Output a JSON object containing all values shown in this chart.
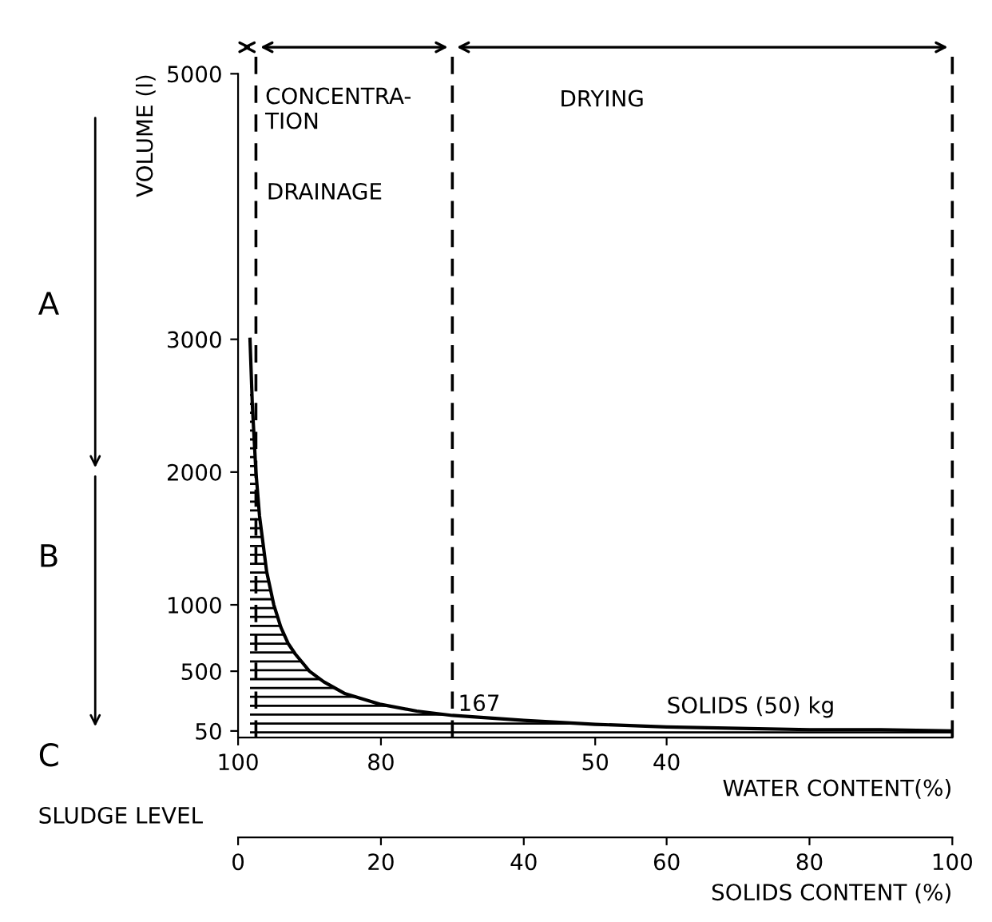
{
  "chart_data": {
    "type": "area",
    "x": [
      1.67,
      2,
      2.5,
      3,
      4,
      5,
      6,
      7,
      8,
      10,
      12,
      15,
      20,
      25,
      30,
      40,
      50,
      60,
      70,
      80,
      90,
      100
    ],
    "series": [
      {
        "color": "#000000",
        "values": [
          3000,
          2500,
          2000,
          1670,
          1250,
          1000,
          830,
          710,
          630,
          500,
          420,
          330,
          250,
          200,
          167,
          130,
          100,
          80,
          70,
          60,
          60,
          50
        ]
      }
    ],
    "xlabel": "SOLIDS CONTENT (%)",
    "x2label": "WATER CONTENT(%)",
    "ylabel": "VOLUME (l)",
    "xlim": [
      0,
      100
    ],
    "xticks": [
      0,
      20,
      40,
      60,
      80,
      100
    ],
    "x2lim": [
      100,
      0
    ],
    "x2ticks": [
      100,
      80,
      50,
      40
    ],
    "ylim": [
      0,
      5000
    ],
    "yticks": [
      50,
      500,
      1000,
      2000,
      3000,
      5000
    ],
    "ref_lines": [
      {
        "axis": "x",
        "value": 2.5,
        "line_style": "dashed",
        "color": "#000000"
      },
      {
        "axis": "x",
        "value": 30,
        "line_style": "dashed",
        "color": "#000000"
      },
      {
        "axis": "x",
        "value": 100,
        "line_style": "dashed",
        "color": "#000000"
      }
    ],
    "annotations": [
      {
        "text": "CONCENTRA-\nTION",
        "x": 3,
        "y": 4900
      },
      "DRAINAGE",
      "DRYING",
      {
        "text": "167",
        "x": 30,
        "y": 167
      },
      "SOLIDS (50) kg",
      "A",
      "B",
      "C",
      "SLUDGE LEVEL"
    ],
    "grid": false
  }
}
